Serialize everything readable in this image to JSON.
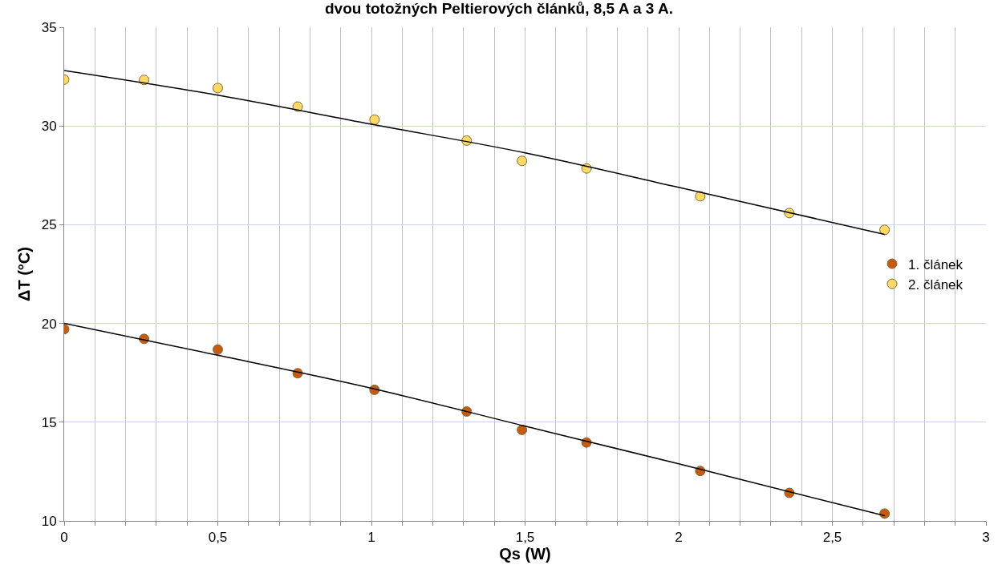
{
  "chart_data": {
    "type": "scatter",
    "title": "dvou totožných Peltierových článků, 8,5 A a 3 A.",
    "xlabel": "Qs (W)",
    "ylabel": "ΔT (°C)",
    "series": [
      {
        "name": "1. článek",
        "color": "#c55a11",
        "x": [
          0,
          0.26,
          0.5,
          0.76,
          1.01,
          1.31,
          1.49,
          1.7,
          2.07,
          2.36,
          2.67
        ],
        "values": [
          19.71,
          19.22,
          18.68,
          17.48,
          16.64,
          15.54,
          14.61,
          13.97,
          12.53,
          11.42,
          10.37
        ]
      },
      {
        "name": "2. článek",
        "color": "#ffd966",
        "x": [
          0,
          0.26,
          0.5,
          0.76,
          1.01,
          1.31,
          1.49,
          1.7,
          2.07,
          2.36,
          2.67
        ],
        "values": [
          32.35,
          32.33,
          31.92,
          30.98,
          30.32,
          29.26,
          28.23,
          27.85,
          26.44,
          25.59,
          24.74
        ]
      },
      {
        "type": "line",
        "color": "#000000",
        "marker": "none",
        "x": [
          0,
          0.5,
          1.0,
          1.5,
          2.0,
          2.67
        ],
        "values": [
          20.0,
          18.39,
          16.72,
          14.8,
          12.89,
          10.26
        ]
      },
      {
        "type": "line",
        "color": "#000000",
        "marker": "none",
        "x": [
          0,
          0.5,
          1.0,
          1.5,
          2.0,
          2.67
        ],
        "values": [
          32.81,
          31.56,
          30.09,
          28.64,
          26.89,
          24.51
        ]
      }
    ],
    "xlim": [
      0,
      3
    ],
    "ylim": [
      10,
      35
    ],
    "xticks": [
      0,
      {
        "value": 0.1,
        "label": null
      },
      {
        "value": 0.2,
        "label": null
      },
      {
        "value": 0.3,
        "label": null
      },
      {
        "value": 0.4,
        "label": null
      },
      {
        "value": 0.5,
        "label": "0,5"
      },
      {
        "value": 0.6,
        "label": null
      },
      {
        "value": 0.7,
        "label": null
      },
      {
        "value": 0.8,
        "label": null
      },
      {
        "value": 0.9,
        "label": null
      },
      1,
      {
        "value": 1.1,
        "label": null
      },
      {
        "value": 1.2,
        "label": null
      },
      {
        "value": 1.3,
        "label": null
      },
      {
        "value": 1.4,
        "label": null
      },
      {
        "value": 1.5,
        "label": "1,5"
      },
      {
        "value": 1.6,
        "label": null
      },
      {
        "value": 1.7,
        "label": null
      },
      {
        "value": 1.8,
        "label": null
      },
      {
        "value": 1.9,
        "label": null
      },
      2,
      {
        "value": 2.1,
        "label": null
      },
      {
        "value": 2.2,
        "label": null
      },
      {
        "value": 2.3,
        "label": null
      },
      {
        "value": 2.4,
        "label": null
      },
      {
        "value": 2.5,
        "label": "2,5"
      },
      {
        "value": 2.6,
        "label": null
      },
      {
        "value": 2.7,
        "label": null
      },
      {
        "value": 2.8,
        "label": null
      },
      {
        "value": 2.9,
        "label": null
      },
      3
    ],
    "yticks": [
      10,
      15,
      20,
      25,
      30,
      35
    ],
    "grid": true,
    "legend": "right",
    "marker": "circle"
  }
}
